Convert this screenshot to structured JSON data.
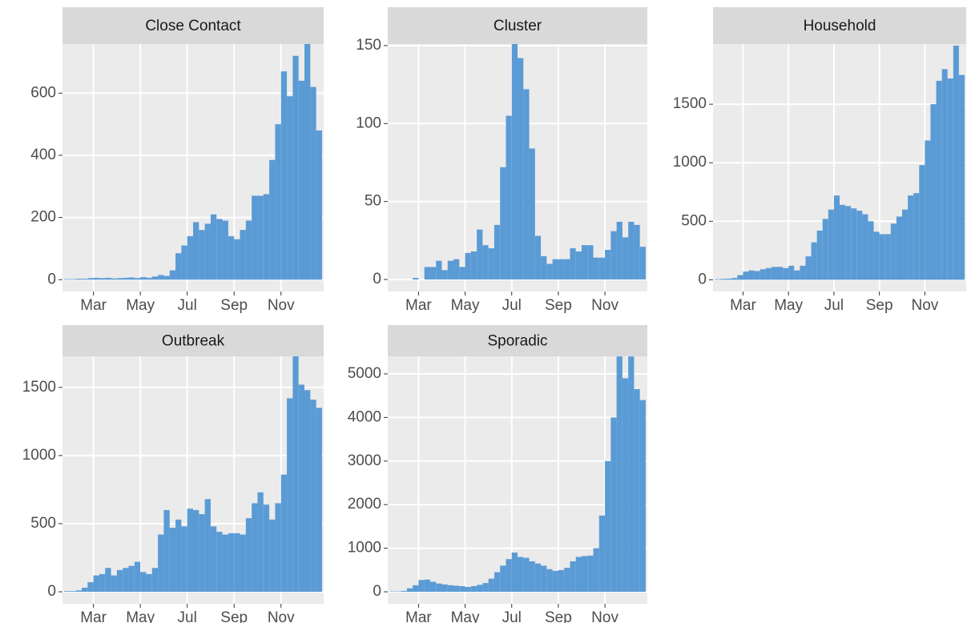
{
  "chart_data": [
    {
      "type": "histogram",
      "title": "Close Contact",
      "color": "#5b9bd5",
      "grid": true,
      "bins": [
        1.75,
        2,
        2.25,
        2.5,
        2.75,
        3,
        3.25,
        3.5,
        3.75,
        4,
        4.25,
        4.5,
        4.75,
        5,
        5.25,
        5.5,
        5.75,
        6,
        6.25,
        6.5,
        6.75,
        7,
        7.25,
        7.5,
        7.75,
        8,
        8.25,
        8.5,
        8.75,
        9,
        9.25,
        9.5,
        9.75,
        10,
        10.25,
        10.5,
        10.75,
        11,
        11.25,
        11.5,
        11.75,
        12,
        12.25,
        12.5,
        12.75
      ],
      "values": [
        2,
        2,
        3,
        3,
        5,
        6,
        5,
        6,
        4,
        5,
        6,
        7,
        5,
        8,
        6,
        10,
        15,
        12,
        30,
        85,
        110,
        140,
        185,
        160,
        180,
        210,
        195,
        190,
        140,
        130,
        160,
        190,
        270,
        270,
        275,
        385,
        500,
        670,
        590,
        720,
        640,
        760,
        620,
        480
      ],
      "xlim": [
        1.68,
        12.82
      ],
      "xticks": [
        {
          "value": 3,
          "label": "Mar"
        },
        {
          "value": 5,
          "label": "May"
        },
        {
          "value": 7,
          "label": "Jul"
        },
        {
          "value": 9,
          "label": "Sep"
        },
        {
          "value": 11,
          "label": "Nov"
        }
      ],
      "ylim": [
        -38,
        758
      ],
      "yticks": [
        0,
        200,
        400,
        600
      ]
    },
    {
      "type": "histogram",
      "title": "Cluster",
      "color": "#5b9bd5",
      "grid": true,
      "bins": [
        1.75,
        2,
        2.25,
        2.5,
        2.75,
        3,
        3.25,
        3.5,
        3.75,
        4,
        4.25,
        4.5,
        4.75,
        5,
        5.25,
        5.5,
        5.75,
        6,
        6.25,
        6.5,
        6.75,
        7,
        7.25,
        7.5,
        7.75,
        8,
        8.25,
        8.5,
        8.75,
        9,
        9.25,
        9.5,
        9.75,
        10,
        10.25,
        10.5,
        10.75,
        11,
        11.25,
        11.5,
        11.75,
        12,
        12.25,
        12.5,
        12.75
      ],
      "values": [
        0,
        0,
        0,
        0,
        1,
        0,
        8,
        8,
        12,
        6,
        12,
        13,
        8,
        17,
        18,
        32,
        22,
        20,
        35,
        72,
        105,
        152,
        142,
        122,
        84,
        28,
        15,
        10,
        13,
        13,
        13,
        20,
        18,
        22,
        22,
        14,
        14,
        19,
        31,
        37,
        27,
        37,
        35,
        21
      ],
      "xlim": [
        1.68,
        12.82
      ],
      "xticks": [
        {
          "value": 3,
          "label": "Mar"
        },
        {
          "value": 5,
          "label": "May"
        },
        {
          "value": 7,
          "label": "Jul"
        },
        {
          "value": 9,
          "label": "Sep"
        },
        {
          "value": 11,
          "label": "Nov"
        }
      ],
      "ylim": [
        -7.7,
        151
      ],
      "yticks": [
        0,
        50,
        100,
        150
      ]
    },
    {
      "type": "histogram",
      "title": "Household",
      "color": "#5b9bd5",
      "grid": true,
      "bins": [
        1.75,
        2,
        2.25,
        2.5,
        2.75,
        3,
        3.25,
        3.5,
        3.75,
        4,
        4.25,
        4.5,
        4.75,
        5,
        5.25,
        5.5,
        5.75,
        6,
        6.25,
        6.5,
        6.75,
        7,
        7.25,
        7.5,
        7.75,
        8,
        8.25,
        8.5,
        8.75,
        9,
        9.25,
        9.5,
        9.75,
        10,
        10.25,
        10.5,
        10.75,
        11,
        11.25,
        11.5,
        11.75,
        12,
        12.25,
        12.5,
        12.75
      ],
      "values": [
        5,
        8,
        10,
        15,
        40,
        70,
        80,
        75,
        90,
        100,
        110,
        110,
        100,
        120,
        80,
        120,
        200,
        320,
        420,
        520,
        600,
        720,
        640,
        630,
        610,
        590,
        560,
        500,
        410,
        390,
        390,
        480,
        540,
        600,
        720,
        740,
        980,
        1190,
        1500,
        1700,
        1800,
        1720,
        2000,
        1750
      ],
      "xlim": [
        1.68,
        12.82
      ],
      "xticks": [
        {
          "value": 3,
          "label": "Mar"
        },
        {
          "value": 5,
          "label": "May"
        },
        {
          "value": 7,
          "label": "Jul"
        },
        {
          "value": 9,
          "label": "Sep"
        },
        {
          "value": 11,
          "label": "Nov"
        }
      ],
      "ylim": [
        -100,
        2014
      ],
      "yticks": [
        0,
        500,
        1000,
        1500
      ]
    },
    {
      "type": "histogram",
      "title": "Outbreak",
      "color": "#5b9bd5",
      "grid": true,
      "bins": [
        1.75,
        2,
        2.25,
        2.5,
        2.75,
        3,
        3.25,
        3.5,
        3.75,
        4,
        4.25,
        4.5,
        4.75,
        5,
        5.25,
        5.5,
        5.75,
        6,
        6.25,
        6.5,
        6.75,
        7,
        7.25,
        7.5,
        7.75,
        8,
        8.25,
        8.5,
        8.75,
        9,
        9.25,
        9.5,
        9.75,
        10,
        10.25,
        10.5,
        10.75,
        11,
        11.25,
        11.5,
        11.75,
        12,
        12.25,
        12.5,
        12.75
      ],
      "values": [
        5,
        5,
        10,
        30,
        70,
        120,
        130,
        175,
        120,
        160,
        175,
        190,
        220,
        145,
        130,
        175,
        420,
        600,
        470,
        530,
        480,
        610,
        600,
        570,
        680,
        480,
        440,
        420,
        430,
        430,
        420,
        540,
        650,
        730,
        640,
        530,
        650,
        860,
        1420,
        1730,
        1520,
        1480,
        1410,
        1350
      ],
      "xlim": [
        1.68,
        12.82
      ],
      "xticks": [
        {
          "value": 3,
          "label": "Mar"
        },
        {
          "value": 5,
          "label": "May"
        },
        {
          "value": 7,
          "label": "Jul"
        },
        {
          "value": 9,
          "label": "Sep"
        },
        {
          "value": 11,
          "label": "Nov"
        }
      ],
      "ylim": [
        -88,
        1728
      ],
      "yticks": [
        0,
        500,
        1000,
        1500
      ]
    },
    {
      "type": "histogram",
      "title": "Sporadic",
      "color": "#5b9bd5",
      "grid": true,
      "bins": [
        1.75,
        2,
        2.25,
        2.5,
        2.75,
        3,
        3.25,
        3.5,
        3.75,
        4,
        4.25,
        4.5,
        4.75,
        5,
        5.25,
        5.5,
        5.75,
        6,
        6.25,
        6.5,
        6.75,
        7,
        7.25,
        7.5,
        7.75,
        8,
        8.25,
        8.5,
        8.75,
        9,
        9.25,
        9.5,
        9.75,
        10,
        10.25,
        10.5,
        10.75,
        11,
        11.25,
        11.5,
        11.75,
        12,
        12.25,
        12.5,
        12.75
      ],
      "values": [
        10,
        10,
        20,
        80,
        150,
        270,
        280,
        230,
        190,
        170,
        150,
        140,
        130,
        110,
        130,
        160,
        200,
        300,
        450,
        600,
        750,
        900,
        800,
        780,
        700,
        650,
        600,
        520,
        480,
        500,
        550,
        700,
        800,
        820,
        830,
        1000,
        1750,
        3000,
        4000,
        5400,
        4900,
        5400,
        4650,
        4400
      ],
      "xlim": [
        1.68,
        12.82
      ],
      "xticks": [
        {
          "value": 3,
          "label": "Mar"
        },
        {
          "value": 5,
          "label": "May"
        },
        {
          "value": 7,
          "label": "Jul"
        },
        {
          "value": 9,
          "label": "Sep"
        },
        {
          "value": 11,
          "label": "Nov"
        }
      ],
      "ylim": [
        -275,
        5403
      ],
      "yticks": [
        0,
        1000,
        2000,
        3000,
        4000,
        5000
      ]
    }
  ]
}
